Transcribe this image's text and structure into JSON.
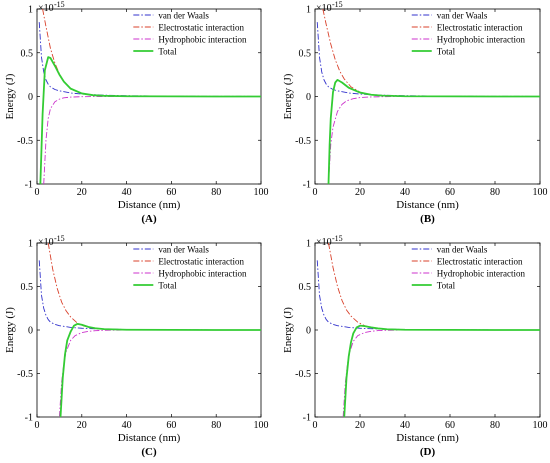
{
  "figure": {
    "panels": [
      {
        "caption": "(A)",
        "xlabel": "Distance (nm)",
        "ylabel": "Energy (J)",
        "exponent_label": "×10",
        "exponent_power": "-15",
        "x_ticks": [
          "0",
          "20",
          "40",
          "60",
          "80",
          "100"
        ],
        "y_ticks": [
          "-1",
          "-0.5",
          "0",
          "0.5",
          "1"
        ],
        "legend": [
          "van der Waals",
          "Electrostatic interaction",
          "Hydrophobic interaction",
          "Total"
        ]
      },
      {
        "caption": "(B)",
        "xlabel": "Distance (nm)",
        "ylabel": "Energy (J)",
        "exponent_label": "×10",
        "exponent_power": "-15",
        "x_ticks": [
          "0",
          "20",
          "40",
          "60",
          "80",
          "100"
        ],
        "y_ticks": [
          "-1",
          "-0.5",
          "0",
          "0.5",
          "1"
        ],
        "legend": [
          "van der Waals",
          "Electrostatic interaction",
          "Hydrophobic interaction",
          "Total"
        ]
      },
      {
        "caption": "(C)",
        "xlabel": "Distance (nm)",
        "ylabel": "Energy (J)",
        "exponent_label": "×10",
        "exponent_power": "-15",
        "x_ticks": [
          "0",
          "20",
          "40",
          "60",
          "80",
          "100"
        ],
        "y_ticks": [
          "-1",
          "-0.5",
          "0",
          "0.5",
          "1"
        ],
        "legend": [
          "van der Waals",
          "Electrostatic interaction",
          "Hydrophobic interaction",
          "Total"
        ]
      },
      {
        "caption": "(D)",
        "xlabel": "Distance (nm)",
        "ylabel": "Energy (J)",
        "exponent_label": "×10",
        "exponent_power": "-15",
        "x_ticks": [
          "0",
          "20",
          "40",
          "60",
          "80",
          "100"
        ],
        "y_ticks": [
          "-1",
          "-0.5",
          "0",
          "0.5",
          "1"
        ],
        "legend": [
          "van der Waals",
          "Electrostatic interaction",
          "Hydrophobic interaction",
          "Total"
        ]
      }
    ]
  },
  "colors": {
    "vdw": "#3333cc",
    "electrostatic": "#d9412b",
    "hydrophobic": "#cc33cc",
    "total": "#33cc33",
    "axis": "#000000"
  },
  "chart_data": [
    {
      "type": "line",
      "xlabel": "Distance (nm)",
      "ylabel": "Energy (J)",
      "xlim": [
        0,
        100
      ],
      "ylim": [
        -1,
        1
      ],
      "y_scale_exponent": -15,
      "legend_position": "top-right",
      "series": [
        {
          "name": "van der Waals",
          "style": "dash-dot",
          "x": [
            1,
            2,
            3,
            4,
            5,
            6,
            8,
            10,
            15,
            20,
            30,
            40,
            60,
            80,
            100
          ],
          "y": [
            0.85,
            0.45,
            0.28,
            0.19,
            0.14,
            0.11,
            0.08,
            0.065,
            0.04,
            0.028,
            0.015,
            0.009,
            0.004,
            0.002,
            0.001
          ]
        },
        {
          "name": "Electrostatic interaction",
          "style": "dash-dot",
          "x": [
            2.5,
            4,
            6,
            8,
            10,
            12,
            15,
            20,
            25,
            30,
            40,
            60,
            80,
            100
          ],
          "y": [
            1.0,
            0.8,
            0.55,
            0.38,
            0.26,
            0.17,
            0.09,
            0.035,
            0.015,
            0.007,
            0.002,
            0.0,
            0.0,
            0.0
          ]
        },
        {
          "name": "Hydrophobic interaction",
          "style": "dash-dot",
          "x": [
            3,
            4,
            5,
            6,
            8,
            10,
            12,
            15,
            20,
            30,
            40,
            60,
            80,
            100
          ],
          "y": [
            -1.0,
            -0.5,
            -0.25,
            -0.14,
            -0.06,
            -0.03,
            -0.015,
            -0.007,
            -0.002,
            0.0,
            0.0,
            0.0,
            0.0,
            0.0
          ]
        },
        {
          "name": "Total",
          "style": "solid",
          "x": [
            1.5,
            2.5,
            3.5,
            5,
            6,
            8,
            10,
            12,
            15,
            20,
            25,
            30,
            40,
            60,
            80,
            100
          ],
          "y": [
            -1.0,
            -0.2,
            0.3,
            0.45,
            0.44,
            0.35,
            0.25,
            0.17,
            0.09,
            0.035,
            0.015,
            0.008,
            0.003,
            0.001,
            0.0,
            0.0
          ]
        }
      ]
    },
    {
      "type": "line",
      "xlabel": "Distance (nm)",
      "ylabel": "Energy (J)",
      "xlim": [
        0,
        100
      ],
      "ylim": [
        -1,
        1
      ],
      "y_scale_exponent": -15,
      "legend_position": "top-right",
      "series": [
        {
          "name": "van der Waals",
          "style": "dash-dot",
          "x": [
            1,
            2,
            3,
            4,
            5,
            6,
            8,
            10,
            15,
            20,
            30,
            40,
            60,
            80,
            100
          ],
          "y": [
            0.85,
            0.45,
            0.28,
            0.19,
            0.14,
            0.11,
            0.08,
            0.065,
            0.04,
            0.028,
            0.015,
            0.009,
            0.004,
            0.002,
            0.001
          ]
        },
        {
          "name": "Electrostatic interaction",
          "style": "dash-dot",
          "x": [
            3.5,
            5,
            7,
            9,
            11,
            13,
            16,
            20,
            25,
            30,
            40,
            60,
            80,
            100
          ],
          "y": [
            1.0,
            0.82,
            0.6,
            0.42,
            0.29,
            0.2,
            0.11,
            0.05,
            0.02,
            0.009,
            0.002,
            0.0,
            0.0,
            0.0
          ]
        },
        {
          "name": "Hydrophobic interaction",
          "style": "dash-dot",
          "x": [
            6,
            7,
            8,
            10,
            12,
            14,
            17,
            20,
            25,
            30,
            40,
            60,
            80,
            100
          ],
          "y": [
            -1.0,
            -0.55,
            -0.35,
            -0.17,
            -0.09,
            -0.05,
            -0.025,
            -0.012,
            -0.005,
            -0.002,
            0.0,
            0.0,
            0.0,
            0.0
          ]
        },
        {
          "name": "Total",
          "style": "solid",
          "x": [
            6,
            6.5,
            7,
            8,
            9,
            10,
            12,
            15,
            20,
            25,
            30,
            40,
            60,
            80,
            100
          ],
          "y": [
            -1.0,
            -0.55,
            -0.25,
            0.05,
            0.16,
            0.19,
            0.16,
            0.1,
            0.045,
            0.02,
            0.01,
            0.003,
            0.001,
            0.0,
            0.0
          ]
        }
      ]
    },
    {
      "type": "line",
      "xlabel": "Distance (nm)",
      "ylabel": "Energy (J)",
      "xlim": [
        0,
        100
      ],
      "ylim": [
        -1,
        1
      ],
      "y_scale_exponent": -15,
      "legend_position": "top-right",
      "series": [
        {
          "name": "van der Waals",
          "style": "dash-dot",
          "x": [
            1,
            2,
            3,
            4,
            5,
            6,
            8,
            10,
            15,
            20,
            30,
            40,
            60,
            80,
            100
          ],
          "y": [
            0.8,
            0.4,
            0.25,
            0.17,
            0.12,
            0.09,
            0.065,
            0.05,
            0.03,
            0.02,
            0.01,
            0.006,
            0.003,
            0.001,
            0.0
          ]
        },
        {
          "name": "Electrostatic interaction",
          "style": "dash-dot",
          "x": [
            5,
            7,
            9,
            11,
            13,
            15,
            18,
            21,
            25,
            30,
            40,
            60,
            80,
            100
          ],
          "y": [
            1.0,
            0.7,
            0.48,
            0.32,
            0.22,
            0.15,
            0.08,
            0.045,
            0.02,
            0.008,
            0.002,
            0.0,
            0.0,
            0.0
          ]
        },
        {
          "name": "Hydrophobic interaction",
          "style": "dash-dot",
          "x": [
            10,
            11,
            12,
            13,
            15,
            17,
            20,
            23,
            26,
            30,
            40,
            60,
            80,
            100
          ],
          "y": [
            -1.0,
            -0.6,
            -0.38,
            -0.25,
            -0.12,
            -0.065,
            -0.03,
            -0.015,
            -0.008,
            -0.003,
            0.0,
            0.0,
            0.0,
            0.0
          ]
        },
        {
          "name": "Total",
          "style": "solid",
          "x": [
            10.5,
            11.5,
            12.5,
            13.5,
            15,
            16.5,
            18,
            20,
            23,
            26,
            30,
            40,
            60,
            80,
            100
          ],
          "y": [
            -1.0,
            -0.55,
            -0.28,
            -0.12,
            -0.02,
            0.05,
            0.07,
            0.06,
            0.035,
            0.02,
            0.01,
            0.003,
            0.001,
            0.0,
            0.0
          ]
        }
      ]
    },
    {
      "type": "line",
      "xlabel": "Distance (nm)",
      "ylabel": "Energy (J)",
      "xlim": [
        0,
        100
      ],
      "ylim": [
        -1,
        1
      ],
      "y_scale_exponent": -15,
      "legend_position": "top-right",
      "series": [
        {
          "name": "van der Waals",
          "style": "dash-dot",
          "x": [
            1,
            2,
            3,
            4,
            5,
            6,
            8,
            10,
            15,
            20,
            30,
            40,
            60,
            80,
            100
          ],
          "y": [
            0.8,
            0.4,
            0.25,
            0.17,
            0.12,
            0.09,
            0.065,
            0.05,
            0.03,
            0.02,
            0.01,
            0.006,
            0.003,
            0.001,
            0.0
          ]
        },
        {
          "name": "Electrostatic interaction",
          "style": "dash-dot",
          "x": [
            6,
            8,
            10,
            12,
            14,
            16,
            19,
            22,
            26,
            30,
            40,
            60,
            80,
            100
          ],
          "y": [
            1.0,
            0.72,
            0.5,
            0.34,
            0.23,
            0.16,
            0.09,
            0.05,
            0.022,
            0.01,
            0.002,
            0.0,
            0.0,
            0.0
          ]
        },
        {
          "name": "Hydrophobic interaction",
          "style": "dash-dot",
          "x": [
            12.5,
            13.5,
            14.5,
            15.5,
            17,
            19,
            22,
            25,
            28,
            32,
            40,
            60,
            80,
            100
          ],
          "y": [
            -1.0,
            -0.6,
            -0.38,
            -0.25,
            -0.13,
            -0.065,
            -0.03,
            -0.015,
            -0.007,
            -0.003,
            0.0,
            0.0,
            0.0,
            0.0
          ]
        },
        {
          "name": "Total",
          "style": "solid",
          "x": [
            13,
            14,
            15,
            16,
            17,
            18.5,
            20,
            22,
            25,
            28,
            32,
            40,
            60,
            80,
            100
          ],
          "y": [
            -1.0,
            -0.55,
            -0.3,
            -0.14,
            -0.04,
            0.03,
            0.05,
            0.045,
            0.03,
            0.018,
            0.009,
            0.003,
            0.001,
            0.0,
            0.0
          ]
        }
      ]
    }
  ]
}
